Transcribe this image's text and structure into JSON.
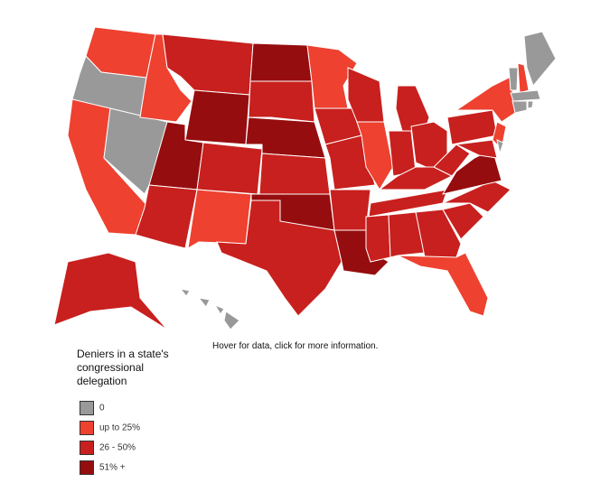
{
  "note": "Hover for data, click for more information.",
  "legend": {
    "title": "Deniers in a state's congressional delegation",
    "items": [
      {
        "label": "0",
        "color": "#999999"
      },
      {
        "label": "up to 25%",
        "color": "#ee4130"
      },
      {
        "label": "26 - 50%",
        "color": "#c8201e"
      },
      {
        "label": "51% +",
        "color": "#960d0f"
      }
    ]
  }
}
